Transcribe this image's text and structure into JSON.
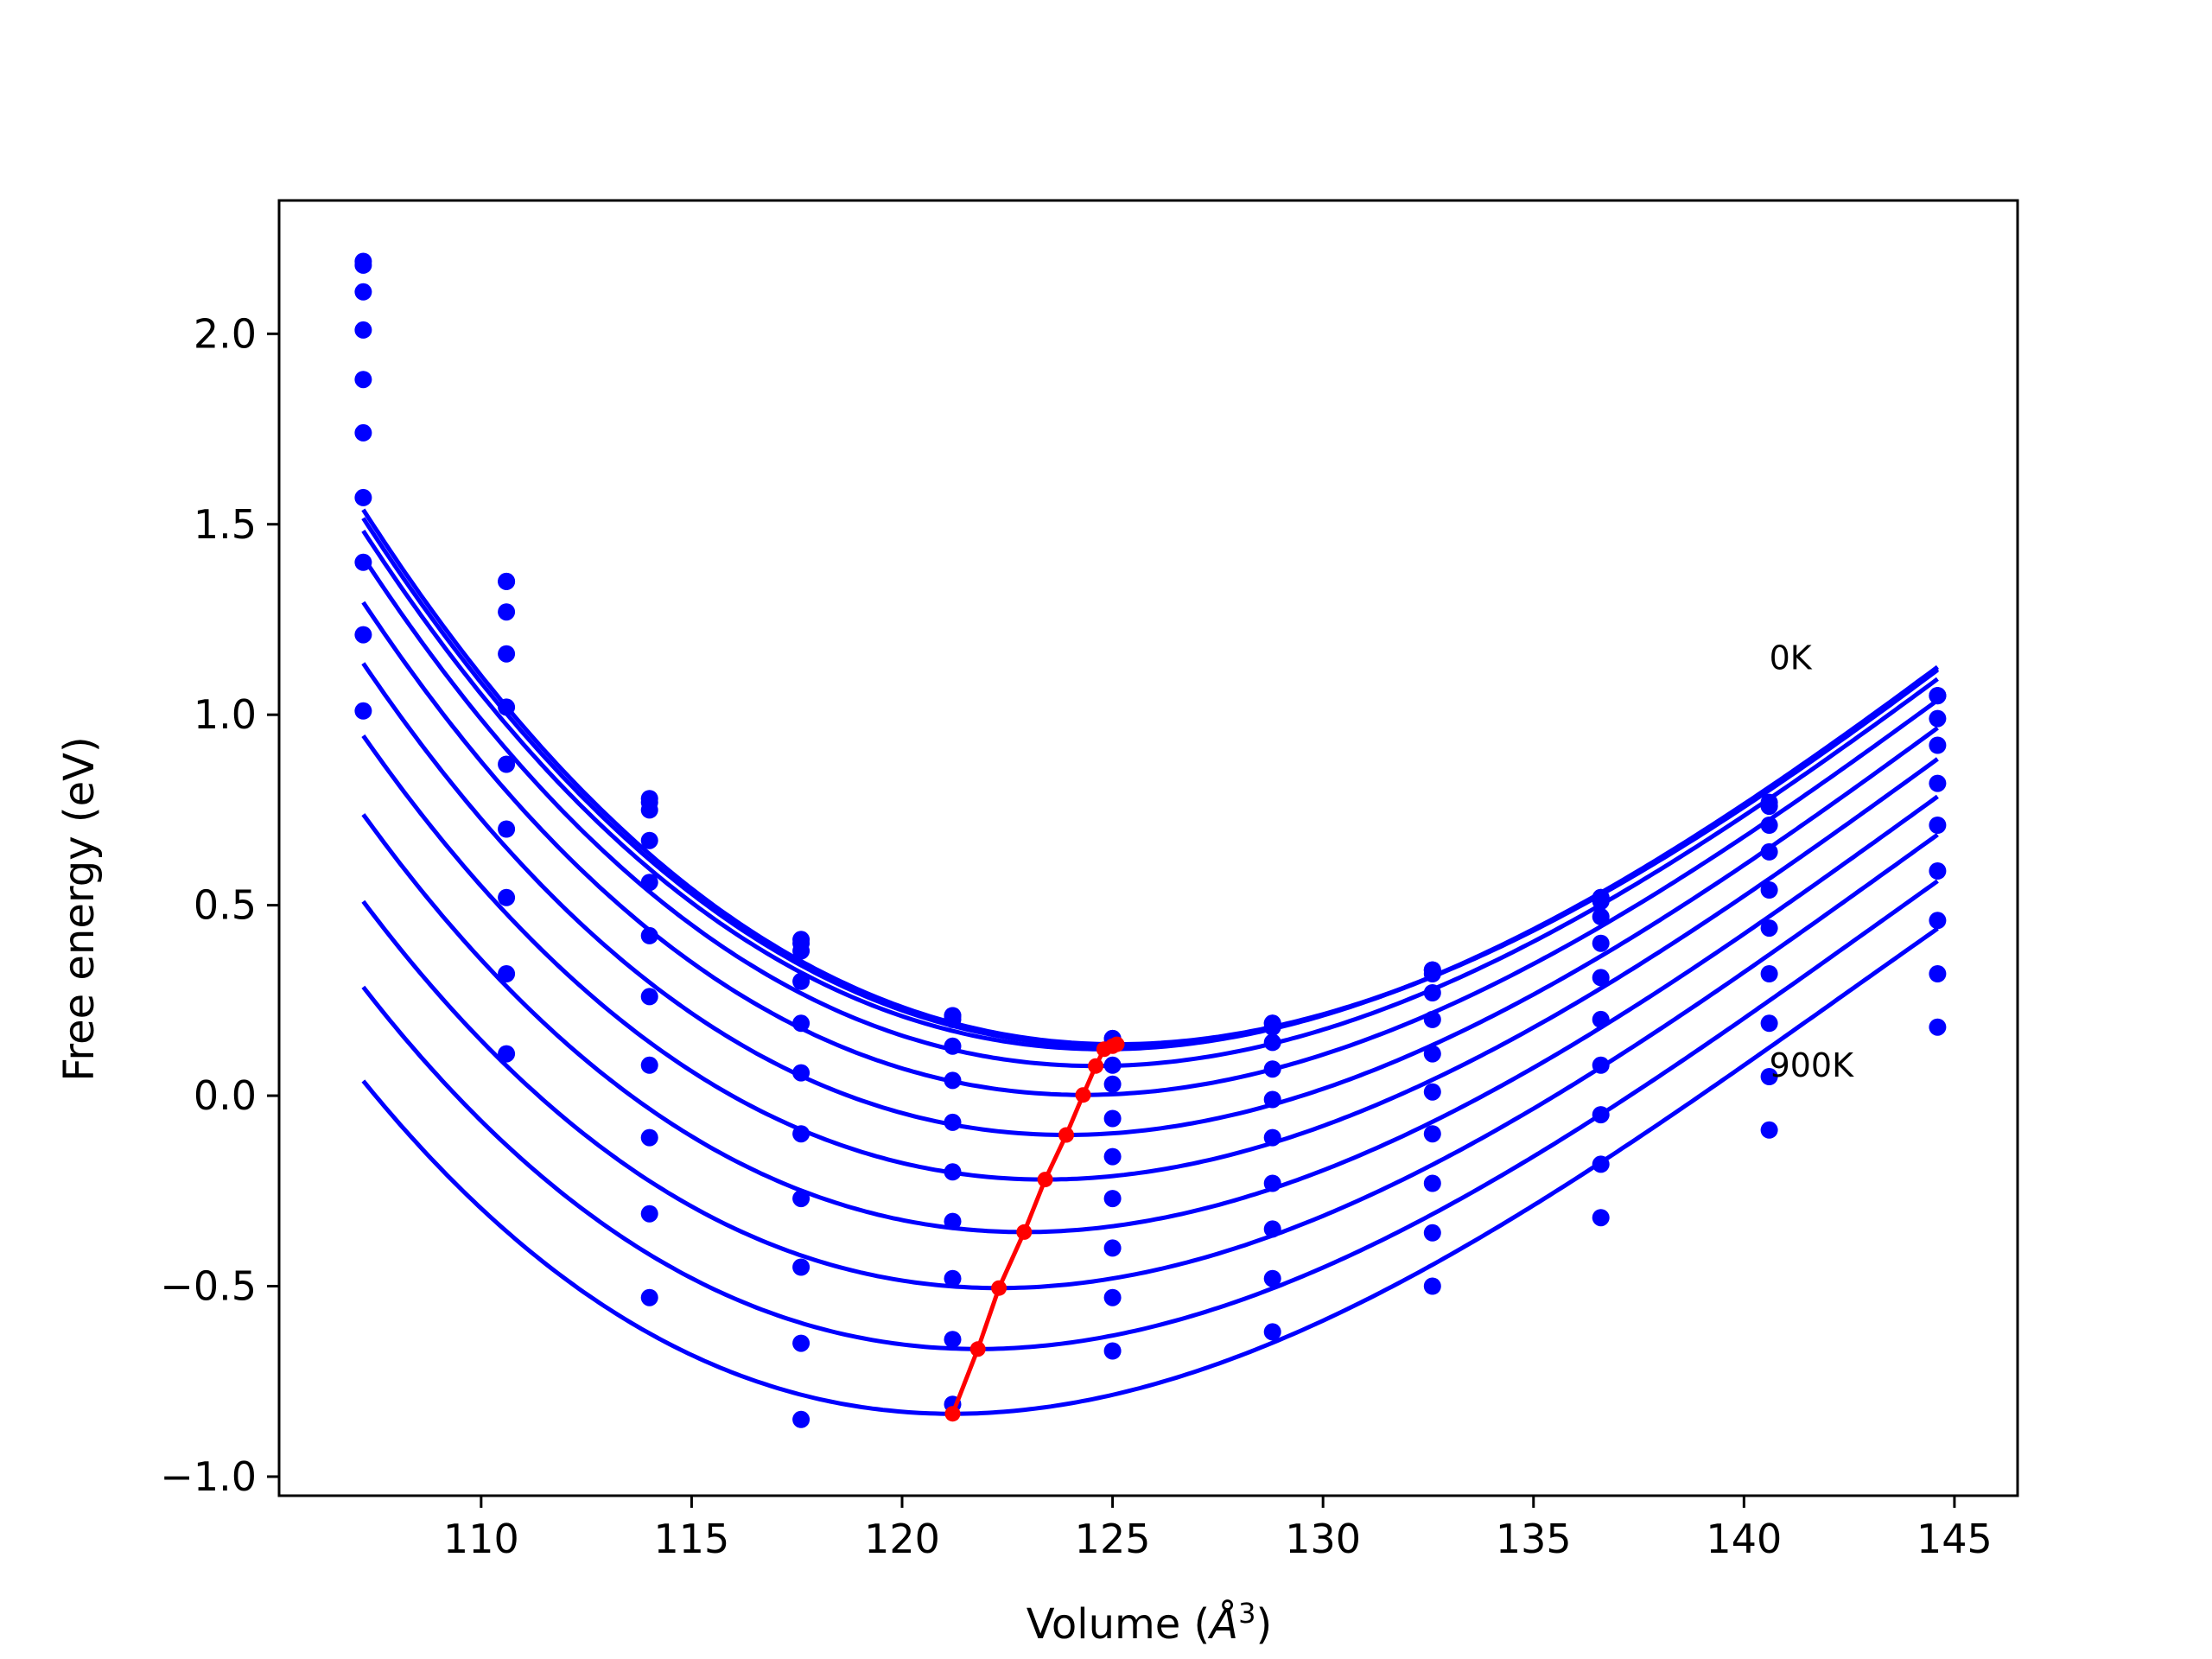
{
  "chart_data": {
    "type": "line",
    "xlabel": "Volume (",
    "xlabel_symbol": "Å",
    "xlabel_exp": "3",
    "xlabel_close": ")",
    "ylabel": "Free energy (eV)",
    "xlim": [
      105.2,
      146.5
    ],
    "ylim": [
      -1.05,
      2.35
    ],
    "xticks": [
      110,
      115,
      120,
      125,
      130,
      135,
      140,
      145
    ],
    "xtick_labels": [
      "110",
      "115",
      "120",
      "125",
      "130",
      "135",
      "140",
      "145"
    ],
    "yticks": [
      -1.0,
      -0.5,
      0.0,
      0.5,
      1.0,
      1.5,
      2.0
    ],
    "ytick_labels": [
      "−1.0",
      "−0.5",
      "0.0",
      "0.5",
      "1.0",
      "1.5",
      "2.0"
    ],
    "grid": false,
    "colors": {
      "curves": "#0000ff",
      "minima": "#ff0000",
      "frame": "#000000"
    },
    "annotations": [
      {
        "text": "0K",
        "x": 140.6,
        "y": 1.12
      },
      {
        "text": "900K",
        "x": 140.6,
        "y": 0.05
      }
    ],
    "volumes": [
      107.2,
      110.6,
      114.0,
      117.6,
      121.2,
      125.0,
      128.8,
      132.6,
      136.6,
      140.6,
      144.6
    ],
    "series": [
      {
        "points": [
          2.19,
          1.35,
          0.78,
          0.41,
          0.21,
          0.15,
          0.19,
          0.33,
          0.52,
          0.77,
          1.05
        ]
      },
      {
        "points": [
          2.18,
          1.35,
          0.77,
          0.4,
          0.21,
          0.15,
          0.19,
          0.33,
          0.52,
          0.76,
          1.05
        ]
      },
      {
        "points": [
          2.11,
          1.27,
          0.75,
          0.38,
          0.2,
          0.14,
          0.18,
          0.32,
          0.51,
          0.76,
          1.05
        ]
      },
      {
        "points": [
          2.01,
          1.16,
          0.67,
          0.3,
          0.13,
          0.08,
          0.14,
          0.27,
          0.47,
          0.71,
          0.99
        ]
      },
      {
        "points": [
          1.88,
          1.02,
          0.56,
          0.19,
          0.04,
          0.03,
          0.07,
          0.2,
          0.4,
          0.64,
          0.92
        ]
      },
      {
        "points": [
          1.74,
          0.87,
          0.42,
          0.06,
          -0.07,
          -0.06,
          -0.01,
          0.11,
          0.31,
          0.54,
          0.82
        ]
      },
      {
        "points": [
          1.57,
          0.7,
          0.26,
          -0.1,
          -0.2,
          -0.16,
          -0.11,
          0.01,
          0.2,
          0.44,
          0.71
        ]
      },
      {
        "points": [
          1.4,
          0.52,
          0.08,
          -0.27,
          -0.33,
          -0.27,
          -0.23,
          -0.1,
          0.08,
          0.32,
          0.59
        ]
      },
      {
        "points": [
          1.21,
          0.32,
          -0.11,
          -0.45,
          -0.48,
          -0.4,
          -0.35,
          -0.23,
          -0.05,
          0.19,
          0.46
        ]
      },
      {
        "points": [
          1.01,
          0.11,
          -0.31,
          -0.65,
          -0.64,
          -0.53,
          -0.48,
          -0.36,
          -0.18,
          0.05,
          0.32
        ]
      },
      {
        "points": [
          null,
          null,
          -0.53,
          -0.85,
          -0.81,
          -0.67,
          -0.62,
          -0.5,
          -0.32,
          -0.09,
          0.18
        ]
      }
    ],
    "fit_curves": [
      {
        "E0": 0.135,
        "V0": 125.1,
        "B": 0.00352,
        "C": -4.8e-05
      },
      {
        "E0": 0.13,
        "V0": 125.0,
        "B": 0.00352,
        "C": -4.8e-05
      },
      {
        "E0": 0.122,
        "V0": 124.8,
        "B": 0.00353,
        "C": -4.9e-05
      },
      {
        "E0": 0.078,
        "V0": 124.6,
        "B": 0.00354,
        "C": -5e-05
      },
      {
        "E0": 0.002,
        "V0": 124.3,
        "B": 0.00355,
        "C": -5.1e-05
      },
      {
        "E0": -0.103,
        "V0": 123.9,
        "B": 0.00357,
        "C": -5.2e-05
      },
      {
        "E0": -0.22,
        "V0": 123.4,
        "B": 0.00358,
        "C": -5.3e-05
      },
      {
        "E0": -0.358,
        "V0": 122.9,
        "B": 0.0036,
        "C": -5.4e-05
      },
      {
        "E0": -0.505,
        "V0": 122.3,
        "B": 0.00362,
        "C": -5.5e-05
      },
      {
        "E0": -0.665,
        "V0": 121.8,
        "B": 0.00364,
        "C": -5.6e-05
      },
      {
        "E0": -0.835,
        "V0": 121.2,
        "B": 0.00366,
        "C": -5.7e-05
      }
    ],
    "minima": {
      "x": [
        125.1,
        125.0,
        124.8,
        124.6,
        124.3,
        123.9,
        123.4,
        122.9,
        122.3,
        121.8,
        121.2
      ],
      "y": [
        0.135,
        0.13,
        0.122,
        0.078,
        0.002,
        -0.103,
        -0.22,
        -0.358,
        -0.505,
        -0.665,
        -0.835
      ]
    }
  }
}
